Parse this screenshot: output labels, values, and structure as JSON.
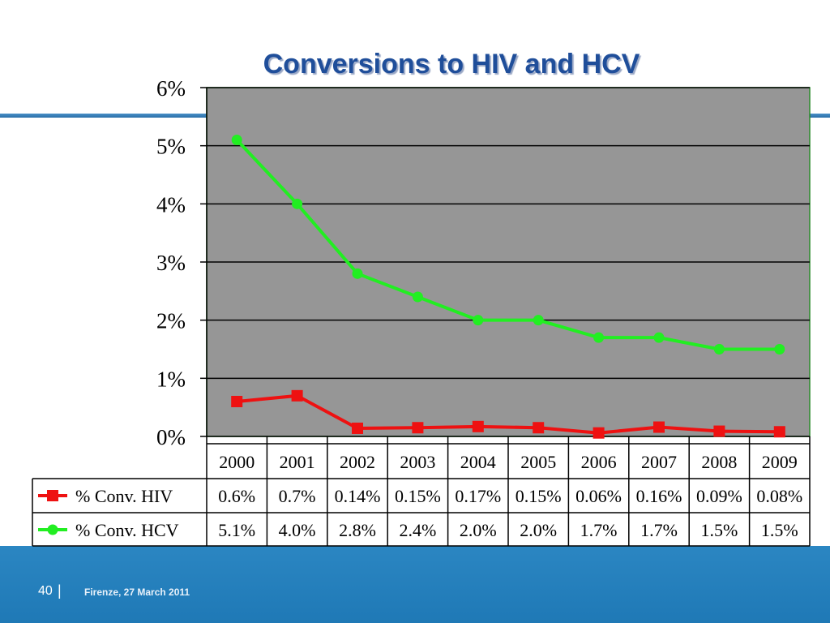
{
  "slide": {
    "title": "Conversions to HIV and HCV",
    "page_number": "40",
    "separator": "|",
    "footer_text": "Firenze, 27 March 2011"
  },
  "chart_data": {
    "type": "line",
    "title": "Conversions to HIV and HCV",
    "categories": [
      "2000",
      "2001",
      "2002",
      "2003",
      "2004",
      "2005",
      "2006",
      "2007",
      "2008",
      "2009"
    ],
    "ylim": [
      0,
      6
    ],
    "yticks": [
      "0%",
      "1%",
      "2%",
      "3%",
      "4%",
      "5%",
      "6%"
    ],
    "grid": true,
    "legend": "data-table",
    "series": [
      {
        "name": "% Conv. HIV",
        "color": "#ee1111",
        "marker": "square",
        "values": [
          0.6,
          0.7,
          0.14,
          0.15,
          0.17,
          0.15,
          0.06,
          0.16,
          0.09,
          0.08
        ],
        "labels": [
          "0.6%",
          "0.7%",
          "0.14%",
          "0.15%",
          "0.17%",
          "0.15%",
          "0.06%",
          "0.16%",
          "0.09%",
          "0.08%"
        ]
      },
      {
        "name": "% Conv. HCV",
        "color": "#22ee22",
        "marker": "circle",
        "values": [
          5.1,
          4.0,
          2.8,
          2.4,
          2.0,
          2.0,
          1.7,
          1.7,
          1.5,
          1.5
        ],
        "labels": [
          "5.1%",
          "4.0%",
          "2.8%",
          "2.4%",
          "2.0%",
          "2.0%",
          "1.7%",
          "1.7%",
          "1.5%",
          "1.5%"
        ]
      }
    ]
  }
}
